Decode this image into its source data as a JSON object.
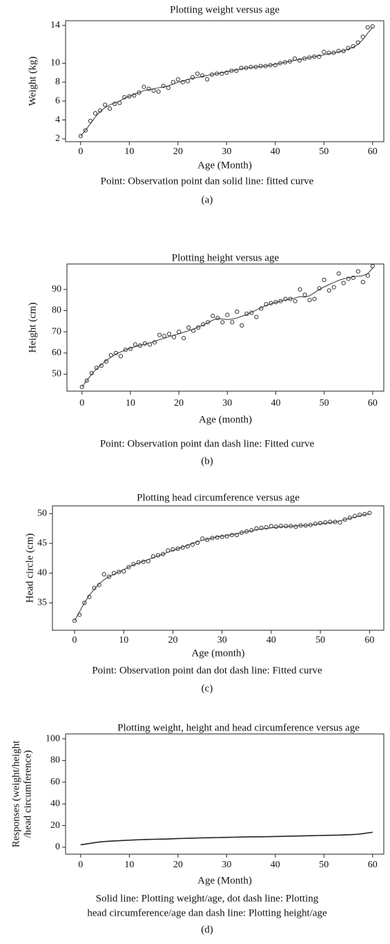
{
  "chart_data": [
    {
      "type": "scatter",
      "title": "Plotting weight versus age",
      "xlabel": "Age (Month)",
      "ylabel": [
        "Weight (kg)"
      ],
      "caption": [
        "Point: Observation point dan solid line: fitted curve"
      ],
      "label": "(a)",
      "xlim": [
        -3.1,
        62.3
      ],
      "ylim": [
        1.7,
        14.5
      ],
      "xticks": [
        0,
        10,
        20,
        30,
        40,
        50,
        60
      ],
      "yticks": [
        2,
        4,
        6,
        8,
        10,
        14
      ],
      "x": [
        0,
        1,
        2,
        3,
        4,
        5,
        6,
        7,
        8,
        9,
        10,
        11,
        12,
        13,
        14,
        15,
        16,
        17,
        18,
        19,
        20,
        21,
        22,
        23,
        24,
        25,
        26,
        27,
        28,
        29,
        30,
        31,
        32,
        33,
        34,
        35,
        36,
        37,
        38,
        39,
        40,
        41,
        42,
        43,
        44,
        45,
        46,
        47,
        48,
        49,
        50,
        51,
        52,
        53,
        54,
        55,
        56,
        57,
        58,
        59,
        60
      ],
      "series": [
        {
          "style": "markers",
          "color": "#333333",
          "values": [
            2.3,
            2.9,
            3.9,
            4.7,
            5.0,
            5.6,
            5.2,
            5.7,
            5.8,
            6.4,
            6.5,
            6.6,
            6.9,
            7.5,
            7.3,
            7.1,
            7.0,
            7.6,
            7.4,
            8.0,
            8.3,
            8.0,
            8.1,
            8.5,
            8.9,
            8.7,
            8.3,
            8.8,
            8.9,
            8.9,
            9.0,
            9.2,
            9.2,
            9.5,
            9.5,
            9.6,
            9.6,
            9.7,
            9.7,
            9.8,
            9.8,
            10.0,
            10.1,
            10.2,
            10.5,
            10.3,
            10.5,
            10.6,
            10.7,
            10.7,
            11.2,
            11.1,
            11.1,
            11.3,
            11.3,
            11.6,
            11.8,
            12.2,
            12.8,
            13.8,
            13.9
          ]
        },
        {
          "style": "line",
          "color": "#333333",
          "values": [
            2.3,
            2.9,
            3.6,
            4.3,
            4.9,
            5.3,
            5.6,
            5.8,
            6.0,
            6.3,
            6.5,
            6.7,
            6.9,
            7.1,
            7.2,
            7.3,
            7.4,
            7.5,
            7.6,
            7.8,
            8.0,
            8.1,
            8.3,
            8.4,
            8.5,
            8.6,
            8.7,
            8.8,
            8.9,
            9.0,
            9.1,
            9.2,
            9.3,
            9.4,
            9.5,
            9.55,
            9.6,
            9.65,
            9.7,
            9.8,
            9.9,
            10.0,
            10.1,
            10.2,
            10.3,
            10.4,
            10.5,
            10.6,
            10.7,
            10.8,
            10.9,
            11.0,
            11.1,
            11.2,
            11.3,
            11.5,
            11.7,
            12.0,
            12.5,
            13.2,
            13.8
          ]
        }
      ]
    },
    {
      "type": "scatter",
      "title": "Plotting height versus age",
      "xlabel": "Age (month)",
      "ylabel": [
        "Height (cm)"
      ],
      "caption": [
        "Point: Observation point dan dash line: Fitted curve"
      ],
      "label": "(b)",
      "xlim": [
        -3.1,
        62.3
      ],
      "ylim": [
        42,
        102
      ],
      "xticks": [
        0,
        10,
        20,
        30,
        40,
        50,
        60
      ],
      "yticks": [
        50,
        60,
        70,
        80,
        90
      ],
      "x": [
        0,
        1,
        2,
        3,
        4,
        5,
        6,
        7,
        8,
        9,
        10,
        11,
        12,
        13,
        14,
        15,
        16,
        17,
        18,
        19,
        20,
        21,
        22,
        23,
        24,
        25,
        26,
        27,
        28,
        29,
        30,
        31,
        32,
        33,
        34,
        35,
        36,
        37,
        38,
        39,
        40,
        41,
        42,
        43,
        44,
        45,
        46,
        47,
        48,
        49,
        50,
        51,
        52,
        53,
        54,
        55,
        56,
        57,
        58,
        59,
        60
      ],
      "series": [
        {
          "style": "markers",
          "color": "#333333",
          "values": [
            44,
            47,
            50.5,
            53,
            54,
            56,
            59,
            60,
            58.5,
            61.5,
            62,
            64,
            63.5,
            64.5,
            64,
            65,
            68.5,
            68,
            69,
            67.5,
            70,
            67,
            72,
            70.5,
            72,
            73.5,
            74.5,
            77.5,
            76.5,
            74.5,
            78,
            74.5,
            79.5,
            73,
            78.5,
            79,
            77,
            81,
            83,
            83.5,
            84,
            84.5,
            85.5,
            85.5,
            84.5,
            90,
            87.5,
            85,
            85.5,
            90.5,
            94.5,
            89.5,
            91,
            97.5,
            93,
            95,
            95.5,
            98.5,
            93.5,
            96.5,
            101
          ]
        },
        {
          "style": "line",
          "color": "#333333",
          "values": [
            44,
            47,
            50,
            52.5,
            54.5,
            56.5,
            58,
            59.5,
            60.5,
            61.5,
            62.3,
            63,
            63.6,
            64.2,
            64.8,
            65.5,
            66.3,
            67,
            67.7,
            68.4,
            69,
            69.8,
            70.5,
            71.3,
            72.2,
            73.2,
            74.3,
            75.5,
            76.3,
            76,
            75.8,
            76,
            76.5,
            77.3,
            78.2,
            79.2,
            80.3,
            81.4,
            82.4,
            83.2,
            83.9,
            84.5,
            85,
            85.5,
            86,
            86.6,
            86.4,
            87,
            88.5,
            90,
            91.2,
            92.3,
            93.3,
            94.3,
            95,
            95.5,
            96,
            96.2,
            96.5,
            97.5,
            100
          ]
        }
      ]
    },
    {
      "type": "scatter",
      "title": "Plotting head circumference versus age",
      "xlabel": "Age (month)",
      "ylabel": [
        "Head circle (cm)"
      ],
      "caption": [
        "Point: Observation point dan dot dash line: Fitted curve"
      ],
      "label": "(c)",
      "xlim": [
        -4.5,
        62.9
      ],
      "ylim": [
        30.4,
        51.3
      ],
      "xticks": [
        0,
        10,
        20,
        30,
        40,
        50,
        60
      ],
      "yticks": [
        35,
        40,
        45,
        50
      ],
      "x": [
        0,
        1,
        2,
        3,
        4,
        5,
        6,
        7,
        8,
        9,
        10,
        11,
        12,
        13,
        14,
        15,
        16,
        17,
        18,
        19,
        20,
        21,
        22,
        23,
        24,
        25,
        26,
        27,
        28,
        29,
        30,
        31,
        32,
        33,
        34,
        35,
        36,
        37,
        38,
        39,
        40,
        41,
        42,
        43,
        44,
        45,
        46,
        47,
        48,
        49,
        50,
        51,
        52,
        53,
        54,
        55,
        56,
        57,
        58,
        59,
        60
      ],
      "series": [
        {
          "style": "markers",
          "color": "#333333",
          "values": [
            32,
            33,
            35,
            36,
            37.5,
            38,
            39.8,
            39.4,
            40,
            40.2,
            40.3,
            41,
            41.5,
            41.8,
            41.9,
            42,
            42.8,
            43,
            43.2,
            43.8,
            44,
            44.1,
            44.3,
            44.5,
            44.8,
            45.1,
            45.8,
            45.6,
            45.9,
            46,
            46.1,
            46.2,
            46.4,
            46.4,
            46.8,
            47,
            47.2,
            47.5,
            47.6,
            47.7,
            47.9,
            47.8,
            47.9,
            47.9,
            47.9,
            47.8,
            48,
            48,
            48.1,
            48.3,
            48.4,
            48.5,
            48.6,
            48.6,
            48.5,
            49,
            49.3,
            49.6,
            49.8,
            49.9,
            50.1
          ]
        },
        {
          "style": "line",
          "color": "#333333",
          "values": [
            32,
            33.5,
            35,
            36.3,
            37.3,
            38.2,
            38.9,
            39.4,
            39.8,
            40.2,
            40.6,
            41,
            41.4,
            41.7,
            42,
            42.3,
            42.6,
            42.9,
            43.2,
            43.5,
            43.8,
            44.1,
            44.4,
            44.7,
            45,
            45.3,
            45.5,
            45.7,
            45.9,
            46.1,
            46.2,
            46.3,
            46.5,
            46.6,
            46.8,
            47,
            47.1,
            47.3,
            47.4,
            47.5,
            47.6,
            47.7,
            47.8,
            47.8,
            47.9,
            47.9,
            48,
            48,
            48.1,
            48.2,
            48.3,
            48.4,
            48.5,
            48.6,
            48.8,
            49,
            49.2,
            49.4,
            49.6,
            49.8,
            50
          ]
        }
      ]
    },
    {
      "type": "line",
      "title": "Plotting weight, height and head circumference versus age",
      "xlabel": "Age (Month)",
      "ylabel": [
        "Responses (weight/height",
        "/head circumference)"
      ],
      "caption": [
        "Solid line: Plotting weight/age, dot dash line: Plotting",
        "head circumference/age  dan dash line: Plotting height/age"
      ],
      "label": "(d)",
      "xlim": [
        -3.1,
        62.3
      ],
      "ylim": [
        -6.4,
        104.5
      ],
      "xticks": [
        0,
        10,
        20,
        30,
        40,
        50,
        60
      ],
      "yticks": [
        0,
        20,
        40,
        60,
        80,
        100
      ],
      "x": [
        0,
        1,
        2,
        3,
        4,
        5,
        6,
        7,
        8,
        9,
        10,
        11,
        12,
        13,
        14,
        15,
        16,
        17,
        18,
        19,
        20,
        21,
        22,
        23,
        24,
        25,
        26,
        27,
        28,
        29,
        30,
        31,
        32,
        33,
        34,
        35,
        36,
        37,
        38,
        39,
        40,
        41,
        42,
        43,
        44,
        45,
        46,
        47,
        48,
        49,
        50,
        51,
        52,
        53,
        54,
        55,
        56,
        57,
        58,
        59,
        60
      ],
      "series": [
        {
          "style": "line",
          "color": "#222222",
          "values": [
            2.3,
            2.9,
            3.6,
            4.3,
            4.9,
            5.3,
            5.6,
            5.8,
            6.0,
            6.3,
            6.5,
            6.7,
            6.9,
            7.1,
            7.2,
            7.3,
            7.4,
            7.5,
            7.6,
            7.8,
            8.0,
            8.1,
            8.3,
            8.4,
            8.5,
            8.6,
            8.7,
            8.8,
            8.9,
            9.0,
            9.1,
            9.2,
            9.3,
            9.4,
            9.5,
            9.55,
            9.6,
            9.65,
            9.7,
            9.8,
            9.9,
            10.0,
            10.1,
            10.2,
            10.3,
            10.4,
            10.5,
            10.6,
            10.7,
            10.8,
            10.9,
            11.0,
            11.1,
            11.2,
            11.3,
            11.5,
            11.7,
            12.0,
            12.5,
            13.2,
            13.8
          ]
        }
      ]
    }
  ]
}
